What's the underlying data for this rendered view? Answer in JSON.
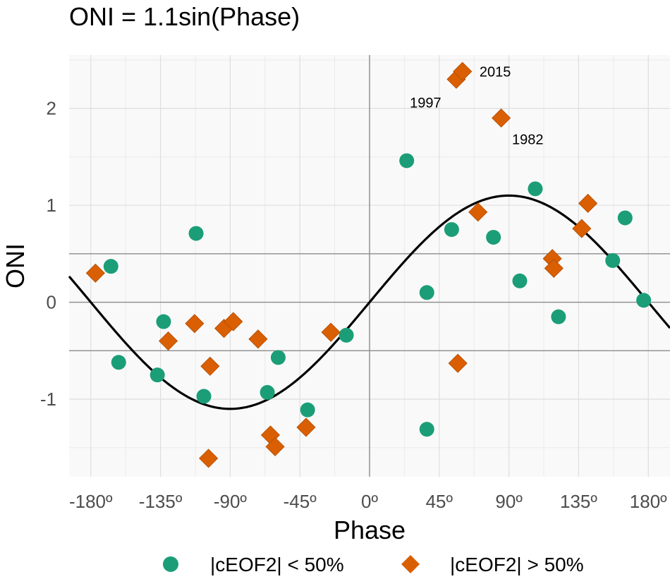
{
  "chart_data": {
    "type": "scatter",
    "title": "ONI = 1.1sin(Phase)",
    "xlabel": "Phase",
    "ylabel": "ONI",
    "xlim": [
      -194,
      194
    ],
    "ylim": [
      -1.8,
      2.55
    ],
    "x_ticks": [
      -180,
      -135,
      -90,
      -45,
      0,
      45,
      90,
      135,
      180
    ],
    "x_tick_labels": [
      "-180º",
      "-135º",
      "-90º",
      "-45º",
      "0º",
      "45º",
      "90º",
      "135º",
      "180º"
    ],
    "y_ticks": [
      -1,
      0,
      1,
      2
    ],
    "y_tick_labels": [
      "-1",
      "0",
      "1",
      "2"
    ],
    "y_minor_ticks": [
      -1.5,
      -0.5,
      0.5,
      1.5,
      2.5
    ],
    "x_minor_ticks": [
      -157.5,
      -112.5,
      -67.5,
      -22.5,
      22.5,
      67.5,
      112.5,
      157.5
    ],
    "reference_lines": {
      "horizontal": [
        -0.5,
        0,
        0.5
      ],
      "vertical": [
        0
      ]
    },
    "curve": {
      "amplitude": 1.1,
      "color": "#000000"
    },
    "grid": true,
    "legend_position": "bottom",
    "series": [
      {
        "name": "|cEOF2| < 50%",
        "marker": "circle",
        "color": "#1b9e77",
        "points": [
          [
            -167,
            0.37
          ],
          [
            -162,
            -0.62
          ],
          [
            -137,
            -0.75
          ],
          [
            -133,
            -0.2
          ],
          [
            -112,
            0.71
          ],
          [
            -107,
            -0.97
          ],
          [
            -66,
            -0.93
          ],
          [
            -59,
            -0.57
          ],
          [
            -40,
            -1.11
          ],
          [
            -15,
            -0.34
          ],
          [
            24,
            1.46
          ],
          [
            37,
            0.1
          ],
          [
            37,
            -1.31
          ],
          [
            53,
            0.75
          ],
          [
            80,
            0.67
          ],
          [
            97,
            0.22
          ],
          [
            107,
            1.17
          ],
          [
            122,
            -0.15
          ],
          [
            157,
            0.43
          ],
          [
            165,
            0.87
          ],
          [
            177,
            0.02
          ]
        ]
      },
      {
        "name": "|cEOF2| > 50%",
        "marker": "diamond",
        "color": "#d95f02",
        "points": [
          [
            -177,
            0.3
          ],
          [
            -130,
            -0.4
          ],
          [
            -113,
            -0.22
          ],
          [
            -103,
            -0.66
          ],
          [
            -104,
            -1.61
          ],
          [
            -94,
            -0.27
          ],
          [
            -88,
            -0.2
          ],
          [
            -72,
            -0.38
          ],
          [
            -64,
            -1.37
          ],
          [
            -61,
            -1.49
          ],
          [
            -41,
            -1.29
          ],
          [
            -25,
            -0.31
          ],
          [
            56,
            2.3
          ],
          [
            60,
            2.38
          ],
          [
            57,
            -0.63
          ],
          [
            70,
            0.93
          ],
          [
            85,
            1.9
          ],
          [
            118,
            0.45
          ],
          [
            119,
            0.35
          ],
          [
            137,
            0.76
          ],
          [
            141,
            1.02
          ]
        ]
      }
    ],
    "annotations": [
      {
        "text": "2015",
        "x": 71,
        "y": 2.38
      },
      {
        "text": "1997",
        "x": 26,
        "y": 2.06
      },
      {
        "text": "1982",
        "x": 92,
        "y": 1.68
      }
    ]
  }
}
